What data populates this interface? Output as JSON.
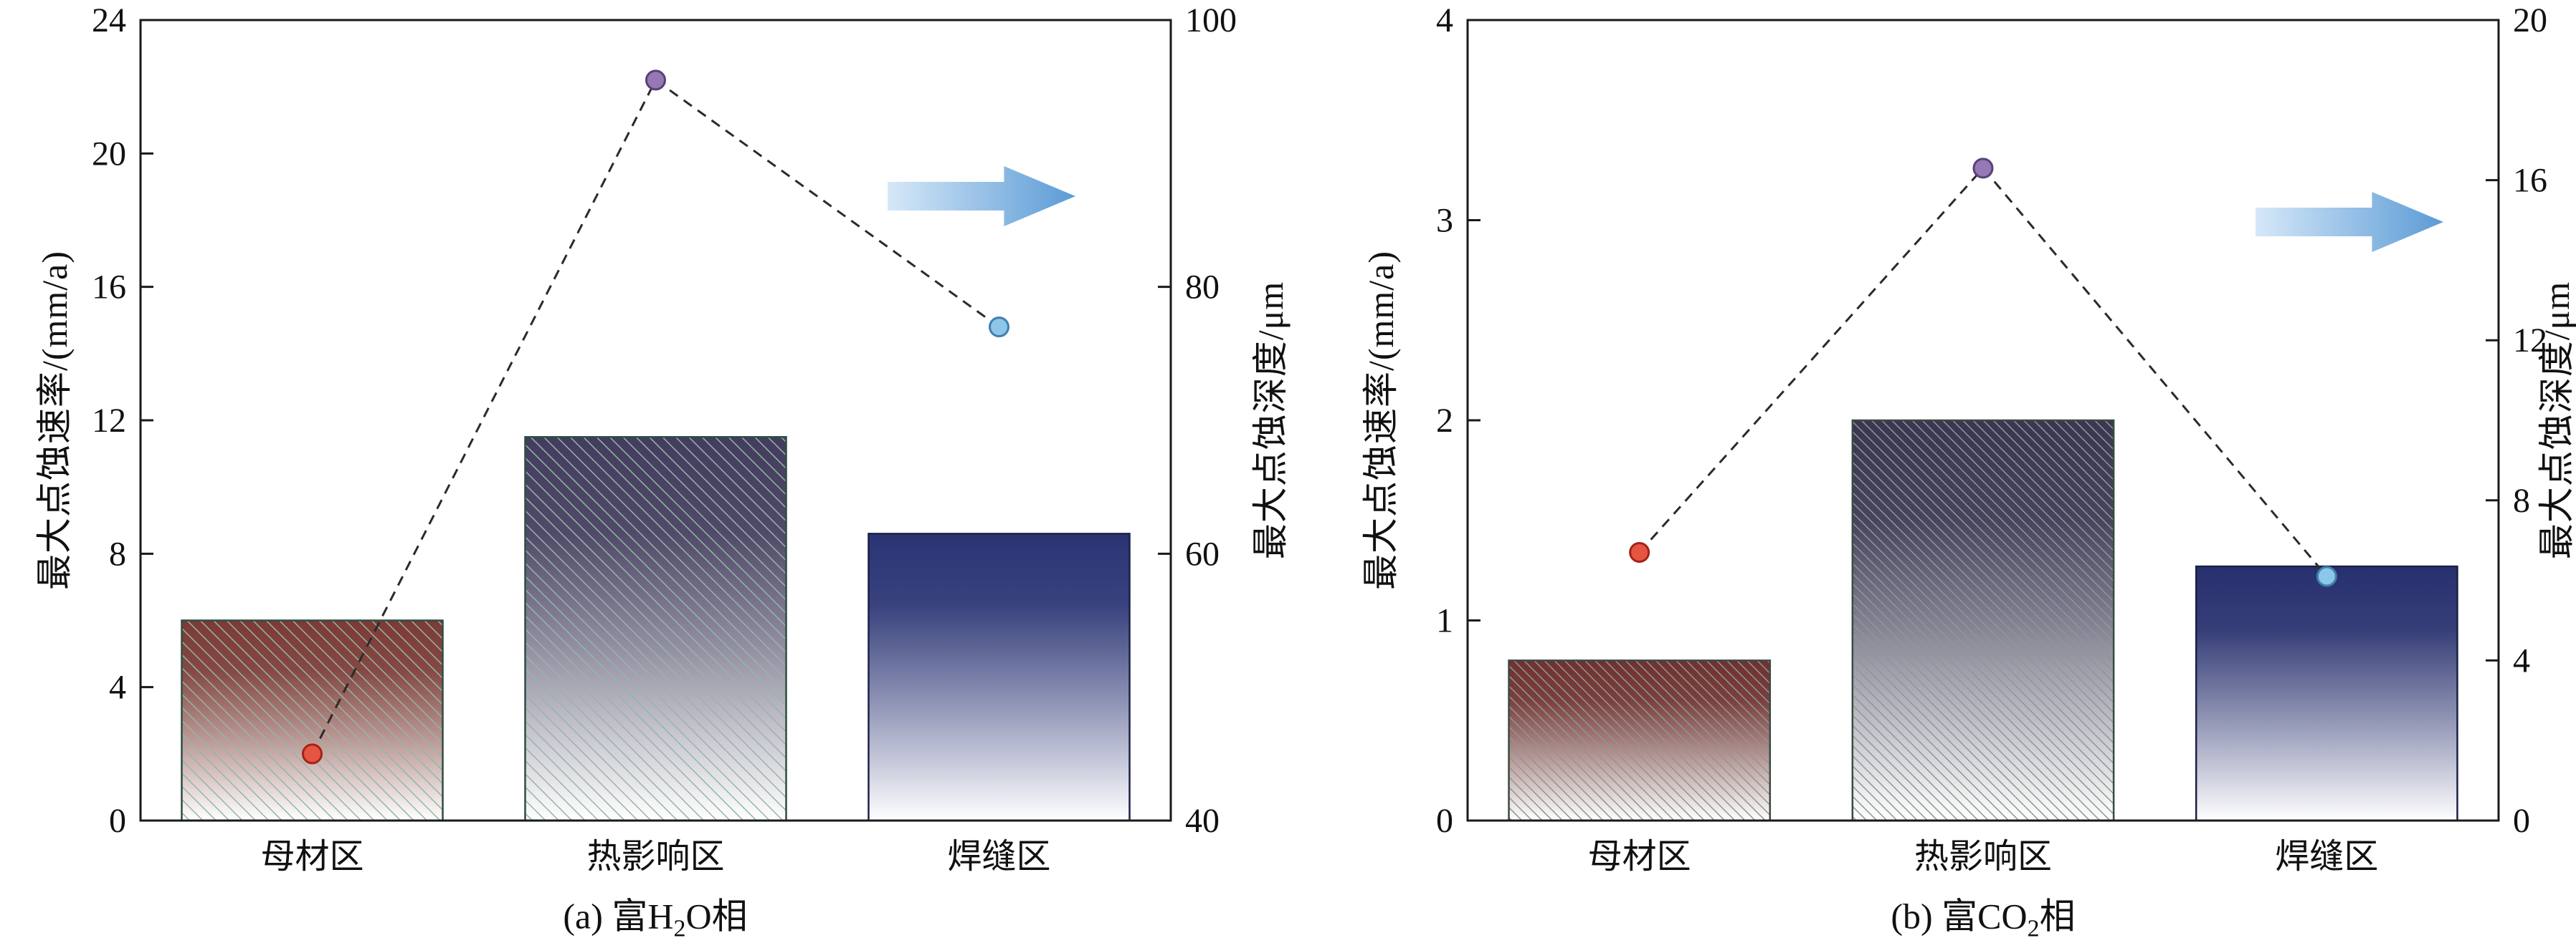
{
  "page": {
    "background": "#ffffff"
  },
  "colors": {
    "axis": "#1a1a1a",
    "text": "#111111",
    "arrow_gradient_start": "#d6e8f8",
    "arrow_gradient_end": "#5b9bd5"
  },
  "chart_data": [
    {
      "id": "a",
      "type": "bar+line-dual-axis",
      "grid": false,
      "legend": "none",
      "caption": {
        "prefix": "(a) 富H",
        "sub": "2",
        "suffix": "O相"
      },
      "categories": [
        "母材区",
        "热影响区",
        "焊缝区"
      ],
      "left_axis": {
        "label": "最大点蚀速率/(mm/a)",
        "min": 0,
        "max": 24,
        "ticks": [
          0,
          4,
          8,
          12,
          16,
          20,
          24
        ]
      },
      "right_axis": {
        "label": "最大点蚀深度/μm",
        "min": 40,
        "max": 100,
        "ticks": [
          40,
          60,
          80,
          100
        ]
      },
      "bars": {
        "series": "最大点蚀速率",
        "axis": "left",
        "values": [
          6.0,
          11.5,
          8.6
        ]
      },
      "line": {
        "series": "最大点蚀深度",
        "axis": "right",
        "values": [
          45,
          95.5,
          77
        ]
      },
      "style": {
        "bar_colors": [
          "#7c3a35",
          "#433c5e",
          "#2a3474"
        ],
        "bar_hatch": [
          true,
          true,
          false
        ],
        "bar_stroke": [
          "#2e4d42",
          "#2e4d42",
          "#1c2145"
        ],
        "hatch_color": "#93b7a4",
        "hatch_spacing": 13,
        "marker_fill": [
          "#e65541",
          "#9678b4",
          "#8cc6e8"
        ],
        "marker_stroke": [
          "#a32315",
          "#5a4079",
          "#3f7fae"
        ],
        "line_color": "#2b2b2b"
      }
    },
    {
      "id": "b",
      "type": "bar+line-dual-axis",
      "grid": false,
      "legend": "none",
      "caption": {
        "prefix": "(b) 富CO",
        "sub": "2",
        "suffix": "相"
      },
      "categories": [
        "母材区",
        "热影响区",
        "焊缝区"
      ],
      "left_axis": {
        "label": "最大点蚀速率/(mm/a)",
        "min": 0,
        "max": 4,
        "ticks": [
          0,
          1,
          2,
          3,
          4
        ]
      },
      "right_axis": {
        "label": "最大点蚀深度/μm",
        "min": 0,
        "max": 20,
        "ticks": [
          0,
          4,
          8,
          12,
          16,
          20
        ]
      },
      "bars": {
        "series": "最大点蚀速率",
        "axis": "left",
        "values": [
          0.8,
          2.0,
          1.27
        ]
      },
      "line": {
        "series": "最大点蚀深度",
        "axis": "right",
        "values": [
          6.7,
          16.3,
          6.1
        ]
      },
      "style": {
        "bar_colors": [
          "#713030",
          "#3a3553",
          "#27306e"
        ],
        "bar_hatch": [
          true,
          true,
          false
        ],
        "bar_stroke": [
          "#3a4a42",
          "#3a4a42",
          "#1c2145"
        ],
        "hatch_color": "#8a9a90",
        "hatch_spacing": 10,
        "marker_fill": [
          "#e65541",
          "#9678b4",
          "#8cc6e8"
        ],
        "marker_stroke": [
          "#a32315",
          "#5a4079",
          "#3f7fae"
        ],
        "line_color": "#2b2b2b"
      }
    }
  ]
}
